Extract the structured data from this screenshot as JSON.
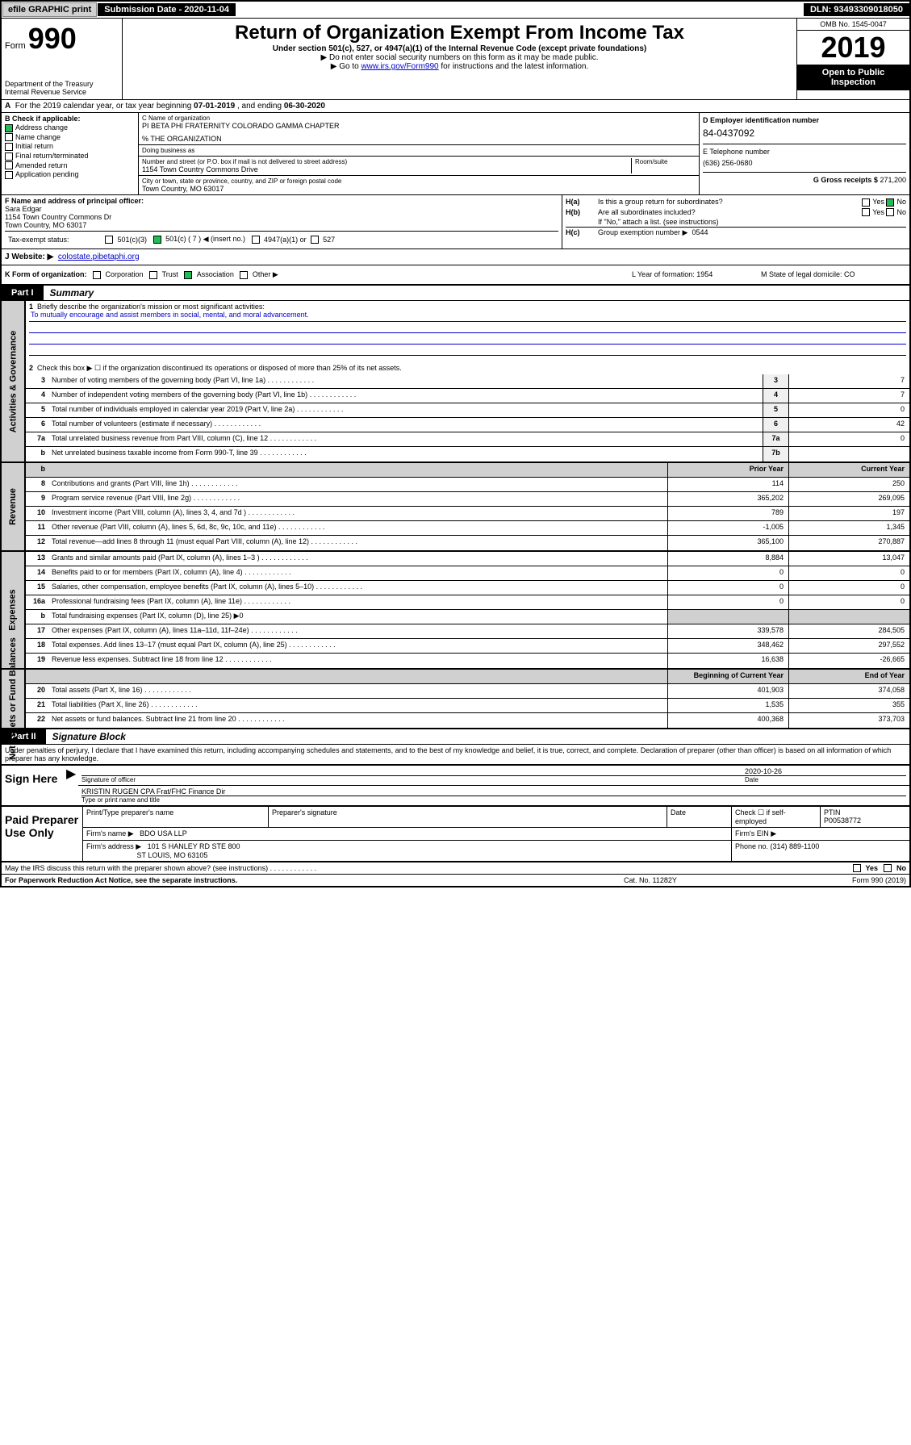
{
  "topbar": {
    "efile": "efile GRAPHIC print",
    "submission": "Submission Date - 2020-11-04",
    "dln": "DLN: 93493309018050"
  },
  "header": {
    "form_prefix": "Form",
    "form_number": "990",
    "dept1": "Department of the Treasury",
    "dept2": "Internal Revenue Service",
    "title": "Return of Organization Exempt From Income Tax",
    "subtitle": "Under section 501(c), 527, or 4947(a)(1) of the Internal Revenue Code (except private foundations)",
    "arrow1": "▶ Do not enter social security numbers on this form as it may be made public.",
    "arrow2_pre": "▶ Go to ",
    "arrow2_link": "www.irs.gov/Form990",
    "arrow2_post": " for instructions and the latest information.",
    "omb": "OMB No. 1545-0047",
    "year": "2019",
    "open": "Open to Public Inspection"
  },
  "line_a": {
    "text_pre": "For the 2019 calendar year, or tax year beginning ",
    "begin": "07-01-2019",
    "text_mid": " , and ending ",
    "end": "06-30-2020"
  },
  "sec_b": {
    "hdr": "B Check if applicable:",
    "opts": [
      "Address change",
      "Name change",
      "Initial return",
      "Final return/terminated",
      "Amended return",
      "Application pending"
    ],
    "checked": [
      true,
      false,
      false,
      false,
      false,
      false
    ]
  },
  "sec_c": {
    "name_hdr": "C Name of organization",
    "name": "PI BETA PHI FRATERNITY COLORADO GAMMA CHAPTER",
    "care": "% THE ORGANIZATION",
    "dba_hdr": "Doing business as",
    "addr_hdr": "Number and street (or P.O. box if mail is not delivered to street address)",
    "room_hdr": "Room/suite",
    "addr": "1154 Town Country Commons Drive",
    "city_hdr": "City or town, state or province, country, and ZIP or foreign postal code",
    "city": "Town Country, MO  63017"
  },
  "sec_d": {
    "ein_hdr": "D Employer identification number",
    "ein": "84-0437092",
    "tel_hdr": "E Telephone number",
    "tel": "(636) 256-0680",
    "gross_hdr": "G Gross receipts $",
    "gross": "271,200"
  },
  "sec_f": {
    "hdr": "F Name and address of principal officer:",
    "name": "Sara Edgar",
    "addr1": "1154 Town Country Commons Dr",
    "addr2": "Town Country, MO  63017"
  },
  "sec_h": {
    "ha_lbl": "H(a)",
    "ha_txt": "Is this a group return for subordinates?",
    "hb_lbl": "H(b)",
    "hb_txt": "Are all subordinates included?",
    "hb_note": "If \"No,\" attach a list. (see instructions)",
    "hc_lbl": "H(c)",
    "hc_txt": "Group exemption number ▶",
    "hc_val": "0544"
  },
  "tax_status": {
    "lbl": "Tax-exempt status:",
    "a": "501(c)(3)",
    "b": "501(c) ( 7 ) ◀ (insert no.)",
    "c": "4947(a)(1) or",
    "d": "527"
  },
  "website": {
    "lbl": "J   Website: ▶",
    "url": "colostate.pibetaphi.org"
  },
  "k_row": {
    "k": "K Form of organization:",
    "opts": [
      "Corporation",
      "Trust",
      "Association",
      "Other ▶"
    ],
    "l": "L Year of formation: 1954",
    "m": "M State of legal domicile: CO"
  },
  "part1": {
    "tag": "Part I",
    "title": "Summary"
  },
  "gov": {
    "side": "Activities & Governance",
    "r1_num": "1",
    "r1": "Briefly describe the organization's mission or most significant activities:",
    "r1_mission": "To mutually encourage and assist members in social, mental, and moral advancement.",
    "r2_num": "2",
    "r2": "Check this box ▶ ☐ if the organization discontinued its operations or disposed of more than 25% of its net assets.",
    "rows": [
      {
        "n": "3",
        "d": "Number of voting members of the governing body (Part VI, line 1a)",
        "box": "3",
        "v": "7"
      },
      {
        "n": "4",
        "d": "Number of independent voting members of the governing body (Part VI, line 1b)",
        "box": "4",
        "v": "7"
      },
      {
        "n": "5",
        "d": "Total number of individuals employed in calendar year 2019 (Part V, line 2a)",
        "box": "5",
        "v": "0"
      },
      {
        "n": "6",
        "d": "Total number of volunteers (estimate if necessary)",
        "box": "6",
        "v": "42"
      },
      {
        "n": "7a",
        "d": "Total unrelated business revenue from Part VIII, column (C), line 12",
        "box": "7a",
        "v": "0"
      },
      {
        "n": "b",
        "d": "Net unrelated business taxable income from Form 990-T, line 39",
        "box": "7b",
        "v": ""
      }
    ]
  },
  "rev": {
    "side": "Revenue",
    "hdr_prior": "Prior Year",
    "hdr_curr": "Current Year",
    "rows": [
      {
        "n": "8",
        "d": "Contributions and grants (Part VIII, line 1h)",
        "p": "114",
        "c": "250"
      },
      {
        "n": "9",
        "d": "Program service revenue (Part VIII, line 2g)",
        "p": "365,202",
        "c": "269,095"
      },
      {
        "n": "10",
        "d": "Investment income (Part VIII, column (A), lines 3, 4, and 7d )",
        "p": "789",
        "c": "197"
      },
      {
        "n": "11",
        "d": "Other revenue (Part VIII, column (A), lines 5, 6d, 8c, 9c, 10c, and 11e)",
        "p": "-1,005",
        "c": "1,345"
      },
      {
        "n": "12",
        "d": "Total revenue—add lines 8 through 11 (must equal Part VIII, column (A), line 12)",
        "p": "365,100",
        "c": "270,887"
      }
    ]
  },
  "exp": {
    "side": "Expenses",
    "rows": [
      {
        "n": "13",
        "d": "Grants and similar amounts paid (Part IX, column (A), lines 1–3 )",
        "p": "8,884",
        "c": "13,047"
      },
      {
        "n": "14",
        "d": "Benefits paid to or for members (Part IX, column (A), line 4)",
        "p": "0",
        "c": "0"
      },
      {
        "n": "15",
        "d": "Salaries, other compensation, employee benefits (Part IX, column (A), lines 5–10)",
        "p": "0",
        "c": "0"
      },
      {
        "n": "16a",
        "d": "Professional fundraising fees (Part IX, column (A), line 11e)",
        "p": "0",
        "c": "0"
      },
      {
        "n": "b",
        "d": "Total fundraising expenses (Part IX, column (D), line 25) ▶0",
        "p": "",
        "c": "",
        "shade": true
      },
      {
        "n": "17",
        "d": "Other expenses (Part IX, column (A), lines 11a–11d, 11f–24e)",
        "p": "339,578",
        "c": "284,505"
      },
      {
        "n": "18",
        "d": "Total expenses. Add lines 13–17 (must equal Part IX, column (A), line 25)",
        "p": "348,462",
        "c": "297,552"
      },
      {
        "n": "19",
        "d": "Revenue less expenses. Subtract line 18 from line 12",
        "p": "16,638",
        "c": "-26,665"
      }
    ]
  },
  "net": {
    "side": "Net Assets or Fund Balances",
    "hdr_begin": "Beginning of Current Year",
    "hdr_end": "End of Year",
    "rows": [
      {
        "n": "20",
        "d": "Total assets (Part X, line 16)",
        "p": "401,903",
        "c": "374,058"
      },
      {
        "n": "21",
        "d": "Total liabilities (Part X, line 26)",
        "p": "1,535",
        "c": "355"
      },
      {
        "n": "22",
        "d": "Net assets or fund balances. Subtract line 21 from line 20",
        "p": "400,368",
        "c": "373,703"
      }
    ]
  },
  "part2": {
    "tag": "Part II",
    "title": "Signature Block",
    "decl": "Under penalties of perjury, I declare that I have examined this return, including accompanying schedules and statements, and to the best of my knowledge and belief, it is true, correct, and complete. Declaration of preparer (other than officer) is based on all information of which preparer has any knowledge."
  },
  "sign": {
    "lbl": "Sign Here",
    "sig_hdr": "Signature of officer",
    "date": "2020-10-26",
    "date_hdr": "Date",
    "name": "KRISTIN RUGEN CPA Frat/FHC Finance Dir",
    "name_hdr": "Type or print name and title"
  },
  "prep": {
    "lbl": "Paid Preparer Use Only",
    "r1": {
      "a": "Print/Type preparer's name",
      "b": "Preparer's signature",
      "c": "Date",
      "d": "Check ☐ if self-employed",
      "e": "PTIN",
      "ptin": "P00538772"
    },
    "r2": {
      "a": "Firm's name    ▶",
      "v": "BDO USA LLP",
      "b": "Firm's EIN ▶"
    },
    "r3": {
      "a": "Firm's address ▶",
      "v": "101 S HANLEY RD STE 800",
      "v2": "ST LOUIS, MO  63105",
      "b": "Phone no. (314) 889-1100"
    }
  },
  "discuss": {
    "txt": "May the IRS discuss this return with the preparer shown above? (see instructions)",
    "yes": "Yes",
    "no": "No"
  },
  "footer": {
    "l": "For Paperwork Reduction Act Notice, see the separate instructions.",
    "c": "Cat. No. 11282Y",
    "r": "Form 990 (2019)"
  }
}
